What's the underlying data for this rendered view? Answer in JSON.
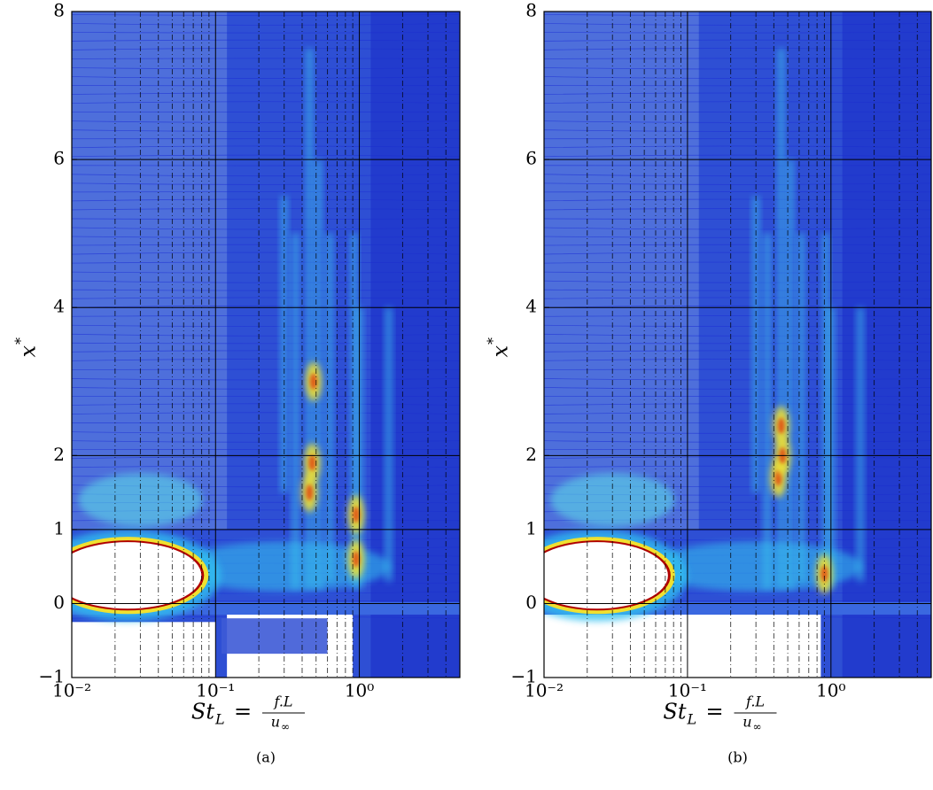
{
  "chart_data": [
    {
      "type": "contour",
      "caption": "(a)",
      "xlabel": {
        "symbol": "St",
        "subscript": "L",
        "equals": "=",
        "numerator": "f.L",
        "denominator": "u",
        "denominator_subscript": "∞"
      },
      "ylabel": {
        "symbol": "x",
        "superscript": "*"
      },
      "xscale": "log",
      "xlim": [
        0.01,
        5
      ],
      "ylim": [
        -1,
        8
      ],
      "xticks": [
        {
          "value": 0.01,
          "label": "10⁻²"
        },
        {
          "value": 0.1,
          "label": "10⁻¹"
        },
        {
          "value": 1,
          "label": "10⁰"
        }
      ],
      "yticks": [
        {
          "value": -1,
          "label": "−1"
        },
        0,
        1,
        2,
        4,
        6,
        8
      ],
      "grid": true
    },
    {
      "type": "contour",
      "caption": "(b)",
      "xlabel": {
        "symbol": "St",
        "subscript": "L",
        "equals": "=",
        "numerator": "f.L",
        "denominator": "u",
        "denominator_subscript": "∞"
      },
      "ylabel": {
        "symbol": "x",
        "superscript": "*"
      },
      "xscale": "log",
      "xlim": [
        0.01,
        5
      ],
      "ylim": [
        -1,
        8
      ],
      "xticks": [
        {
          "value": 0.01,
          "label": "10⁻²"
        },
        {
          "value": 0.1,
          "label": "10⁻¹"
        },
        {
          "value": 1,
          "label": "10⁰"
        }
      ],
      "yticks": [
        {
          "value": -1,
          "label": "−1"
        },
        0,
        1,
        2,
        4,
        6,
        8
      ],
      "grid": true
    }
  ]
}
